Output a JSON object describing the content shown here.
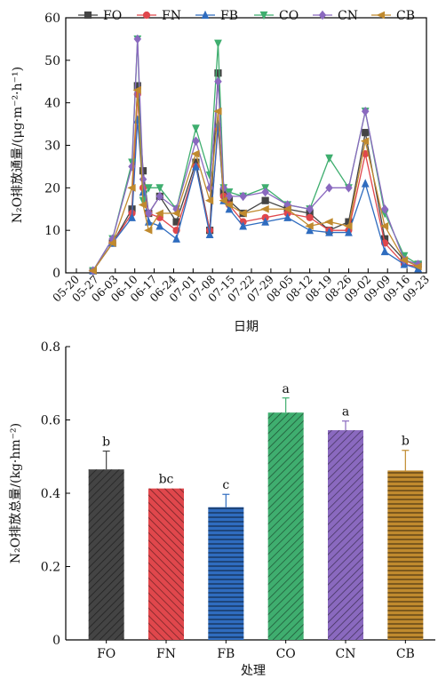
{
  "chart_data": [
    {
      "type": "line",
      "ylabel": "N₂O排放通量/(μg·m⁻²·h⁻¹)",
      "xlabel": "日期",
      "ylim": [
        0,
        60
      ],
      "yticks": [
        0,
        10,
        20,
        30,
        40,
        50,
        60
      ],
      "xlim": [
        "05-20",
        "09-23"
      ],
      "xticks": [
        "05-20",
        "05-27",
        "06-03",
        "06-10",
        "06-17",
        "06-24",
        "07-01",
        "07-08",
        "07-15",
        "07-22",
        "07-29",
        "08-05",
        "08-12",
        "08-19",
        "08-26",
        "09-02",
        "09-09",
        "09-16",
        "09-23"
      ],
      "legend_position": "top",
      "x": [
        "05-26",
        "06-02",
        "06-09",
        "06-11",
        "06-13",
        "06-15",
        "06-19",
        "06-25",
        "07-02",
        "07-07",
        "07-10",
        "07-12",
        "07-14",
        "07-19",
        "07-27",
        "08-04",
        "08-12",
        "08-19",
        "08-26",
        "09-01",
        "09-08",
        "09-15",
        "09-20"
      ],
      "series": [
        {
          "name": "FO",
          "color": "#444444",
          "marker": "square",
          "values": [
            0.5,
            7,
            15,
            44,
            24,
            14,
            18,
            12,
            26,
            10,
            47,
            19,
            17,
            14,
            17,
            15,
            14,
            10,
            12,
            33,
            8,
            3,
            2
          ]
        },
        {
          "name": "FN",
          "color": "#e0474c",
          "marker": "circle",
          "values": [
            0.5,
            7,
            14,
            42,
            20,
            14,
            13,
            10,
            25,
            10,
            34,
            18,
            16,
            12,
            13,
            14,
            13,
            10,
            10,
            28,
            7,
            2,
            1.5
          ]
        },
        {
          "name": "FB",
          "color": "#2f6cbf",
          "marker": "triangle",
          "values": [
            0.5,
            7,
            13,
            36,
            19,
            12,
            11,
            8,
            25,
            9,
            35,
            17,
            15,
            11,
            12,
            13,
            10,
            9.5,
            9.5,
            21,
            5,
            2,
            1
          ]
        },
        {
          "name": "CO",
          "color": "#3fae6f",
          "marker": "triangle-down",
          "values": [
            0.5,
            8,
            26,
            55,
            17,
            20,
            20,
            15,
            34,
            23,
            54,
            20,
            19,
            18,
            20,
            16,
            15,
            27,
            20,
            38,
            14,
            4,
            2
          ]
        },
        {
          "name": "CN",
          "color": "#8a69bf",
          "marker": "diamond",
          "values": [
            0.5,
            8,
            25,
            55,
            22,
            14,
            18,
            15,
            31,
            20,
            45,
            20,
            18,
            18,
            19,
            16,
            15,
            20,
            20,
            38,
            15,
            3,
            2
          ]
        },
        {
          "name": "CB",
          "color": "#c08a2e",
          "marker": "triangle-left",
          "values": [
            0.5,
            7,
            20,
            43,
            16,
            10,
            14,
            14,
            28,
            17,
            38,
            17,
            16,
            14,
            15,
            15,
            11,
            12,
            11,
            31,
            11,
            3,
            1.5
          ]
        }
      ]
    },
    {
      "type": "bar",
      "ylabel": "N₂O排放总量/(kg·hm⁻²)",
      "xlabel": "处理",
      "ylim": [
        0,
        0.8
      ],
      "yticks": [
        "0",
        "0.2",
        "0.4",
        "0.6",
        "0.8"
      ],
      "categories": [
        "FO",
        "FN",
        "FB",
        "CO",
        "CN",
        "CB"
      ],
      "values": [
        0.465,
        0.413,
        0.362,
        0.62,
        0.572,
        0.462
      ],
      "errors": [
        0.05,
        0.0,
        0.035,
        0.04,
        0.025,
        0.055
      ],
      "significance": [
        "b",
        "bc",
        "c",
        "a",
        "a",
        "b"
      ],
      "colors": [
        "#444444",
        "#e0474c",
        "#2f6cbf",
        "#3fae6f",
        "#8a69bf",
        "#c08a2e"
      ]
    }
  ]
}
